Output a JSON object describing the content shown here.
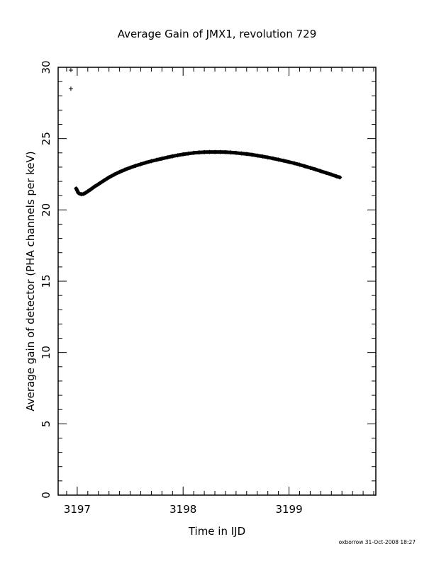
{
  "chart_data": {
    "type": "scatter",
    "title": "Average Gain of JMX1, revolution 729",
    "xlabel": "Time in IJD",
    "ylabel": "Average gain of detector (PHA channels per keV)",
    "footer": "oxborrow 31-Oct-2008 18:27",
    "xlim": [
      3196.82,
      3199.82
    ],
    "ylim": [
      0,
      30
    ],
    "x_ticks": [
      3197,
      3198,
      3199
    ],
    "x_tick_labels": [
      "3197",
      "3198",
      "3199"
    ],
    "y_ticks": [
      0,
      5,
      10,
      15,
      20,
      25,
      30
    ],
    "y_tick_labels": [
      "0",
      "5",
      "10",
      "15",
      "20",
      "25",
      "30"
    ],
    "grid": false,
    "marker": "+",
    "series": [
      {
        "points": [
          [
            3196.94,
            29.8
          ],
          [
            3196.94,
            28.5
          ],
          [
            3196.99,
            21.5
          ],
          [
            3197.0,
            21.35
          ],
          [
            3197.01,
            21.2
          ],
          [
            3197.02,
            21.15
          ],
          [
            3197.04,
            21.1
          ],
          [
            3197.06,
            21.12
          ],
          [
            3197.08,
            21.2
          ],
          [
            3197.1,
            21.3
          ],
          [
            3197.13,
            21.45
          ],
          [
            3197.16,
            21.62
          ],
          [
            3197.2,
            21.8
          ],
          [
            3197.25,
            22.05
          ],
          [
            3197.3,
            22.28
          ],
          [
            3197.35,
            22.48
          ],
          [
            3197.4,
            22.66
          ],
          [
            3197.45,
            22.82
          ],
          [
            3197.5,
            22.96
          ],
          [
            3197.55,
            23.09
          ],
          [
            3197.6,
            23.21
          ],
          [
            3197.65,
            23.32
          ],
          [
            3197.7,
            23.42
          ],
          [
            3197.75,
            23.51
          ],
          [
            3197.8,
            23.6
          ],
          [
            3197.85,
            23.68
          ],
          [
            3197.9,
            23.76
          ],
          [
            3197.95,
            23.83
          ],
          [
            3198.0,
            23.9
          ],
          [
            3198.05,
            23.95
          ],
          [
            3198.1,
            24.0
          ],
          [
            3198.15,
            24.03
          ],
          [
            3198.2,
            24.05
          ],
          [
            3198.25,
            24.06
          ],
          [
            3198.3,
            24.06
          ],
          [
            3198.35,
            24.06
          ],
          [
            3198.4,
            24.05
          ],
          [
            3198.45,
            24.03
          ],
          [
            3198.5,
            24.0
          ],
          [
            3198.55,
            23.96
          ],
          [
            3198.6,
            23.92
          ],
          [
            3198.65,
            23.87
          ],
          [
            3198.7,
            23.81
          ],
          [
            3198.75,
            23.75
          ],
          [
            3198.8,
            23.68
          ],
          [
            3198.85,
            23.61
          ],
          [
            3198.9,
            23.53
          ],
          [
            3198.95,
            23.45
          ],
          [
            3199.0,
            23.36
          ],
          [
            3199.05,
            23.27
          ],
          [
            3199.1,
            23.17
          ],
          [
            3199.15,
            23.06
          ],
          [
            3199.2,
            22.95
          ],
          [
            3199.25,
            22.84
          ],
          [
            3199.3,
            22.72
          ],
          [
            3199.35,
            22.6
          ],
          [
            3199.4,
            22.48
          ],
          [
            3199.45,
            22.35
          ],
          [
            3199.48,
            22.28
          ]
        ],
        "color": "#000000"
      }
    ]
  }
}
